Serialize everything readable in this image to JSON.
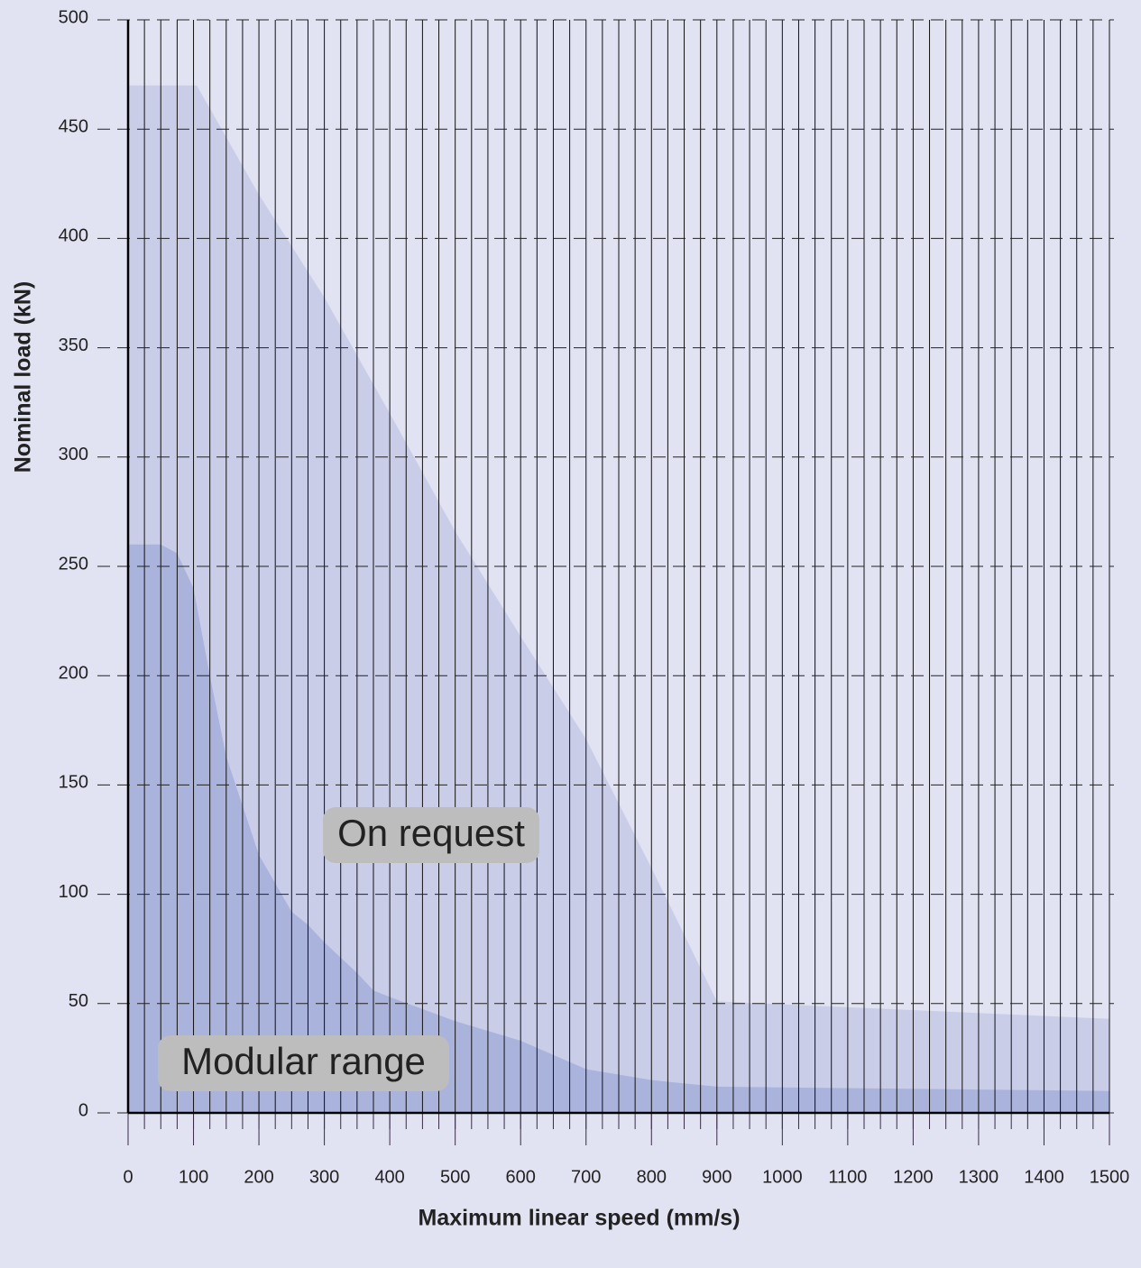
{
  "chart_data": {
    "type": "area",
    "xlabel": "Maximum linear speed (mm/s)",
    "ylabel": "Nominal load (kN)",
    "series": [
      {
        "name": "On request",
        "color": "#c9cde8",
        "x": [
          0,
          105,
          200,
          300,
          400,
          500,
          600,
          700,
          800,
          900,
          1500
        ],
        "values": [
          470,
          470,
          420,
          373,
          320,
          266,
          218,
          171,
          112,
          51,
          43
        ]
      },
      {
        "name": "Modular range",
        "color": "#aab3db",
        "x": [
          0,
          50,
          75,
          100,
          125,
          150,
          200,
          250,
          275,
          300,
          350,
          375,
          400,
          500,
          600,
          700,
          800,
          900,
          1500
        ],
        "values": [
          260,
          260,
          256,
          240,
          200,
          163,
          118,
          92,
          86,
          78,
          64,
          56,
          53,
          42,
          33,
          20,
          15,
          12,
          10
        ]
      }
    ],
    "xlim": [
      0,
      1500
    ],
    "ylim": [
      0,
      500
    ],
    "xticks": [
      0,
      100,
      200,
      300,
      400,
      500,
      600,
      700,
      800,
      900,
      1000,
      1100,
      1200,
      1300,
      1400,
      1500
    ],
    "xminorticks": [
      0,
      25,
      50,
      75,
      100,
      125,
      150,
      175,
      200,
      225,
      250,
      275,
      300,
      325,
      350,
      375,
      400,
      425,
      450,
      475,
      500,
      525,
      550,
      575,
      600,
      625,
      650,
      675,
      700,
      725,
      750,
      775,
      800,
      825,
      850,
      875,
      900,
      925,
      950,
      975,
      1000,
      1025,
      1050,
      1075,
      1100,
      1125,
      1150,
      1175,
      1200,
      1225,
      1250,
      1275,
      1300,
      1325,
      1350,
      1375,
      1400,
      1425,
      1450,
      1475,
      1500
    ],
    "yticks": [
      0,
      50,
      100,
      150,
      200,
      250,
      300,
      350,
      400,
      450,
      500
    ],
    "grid": true
  }
}
